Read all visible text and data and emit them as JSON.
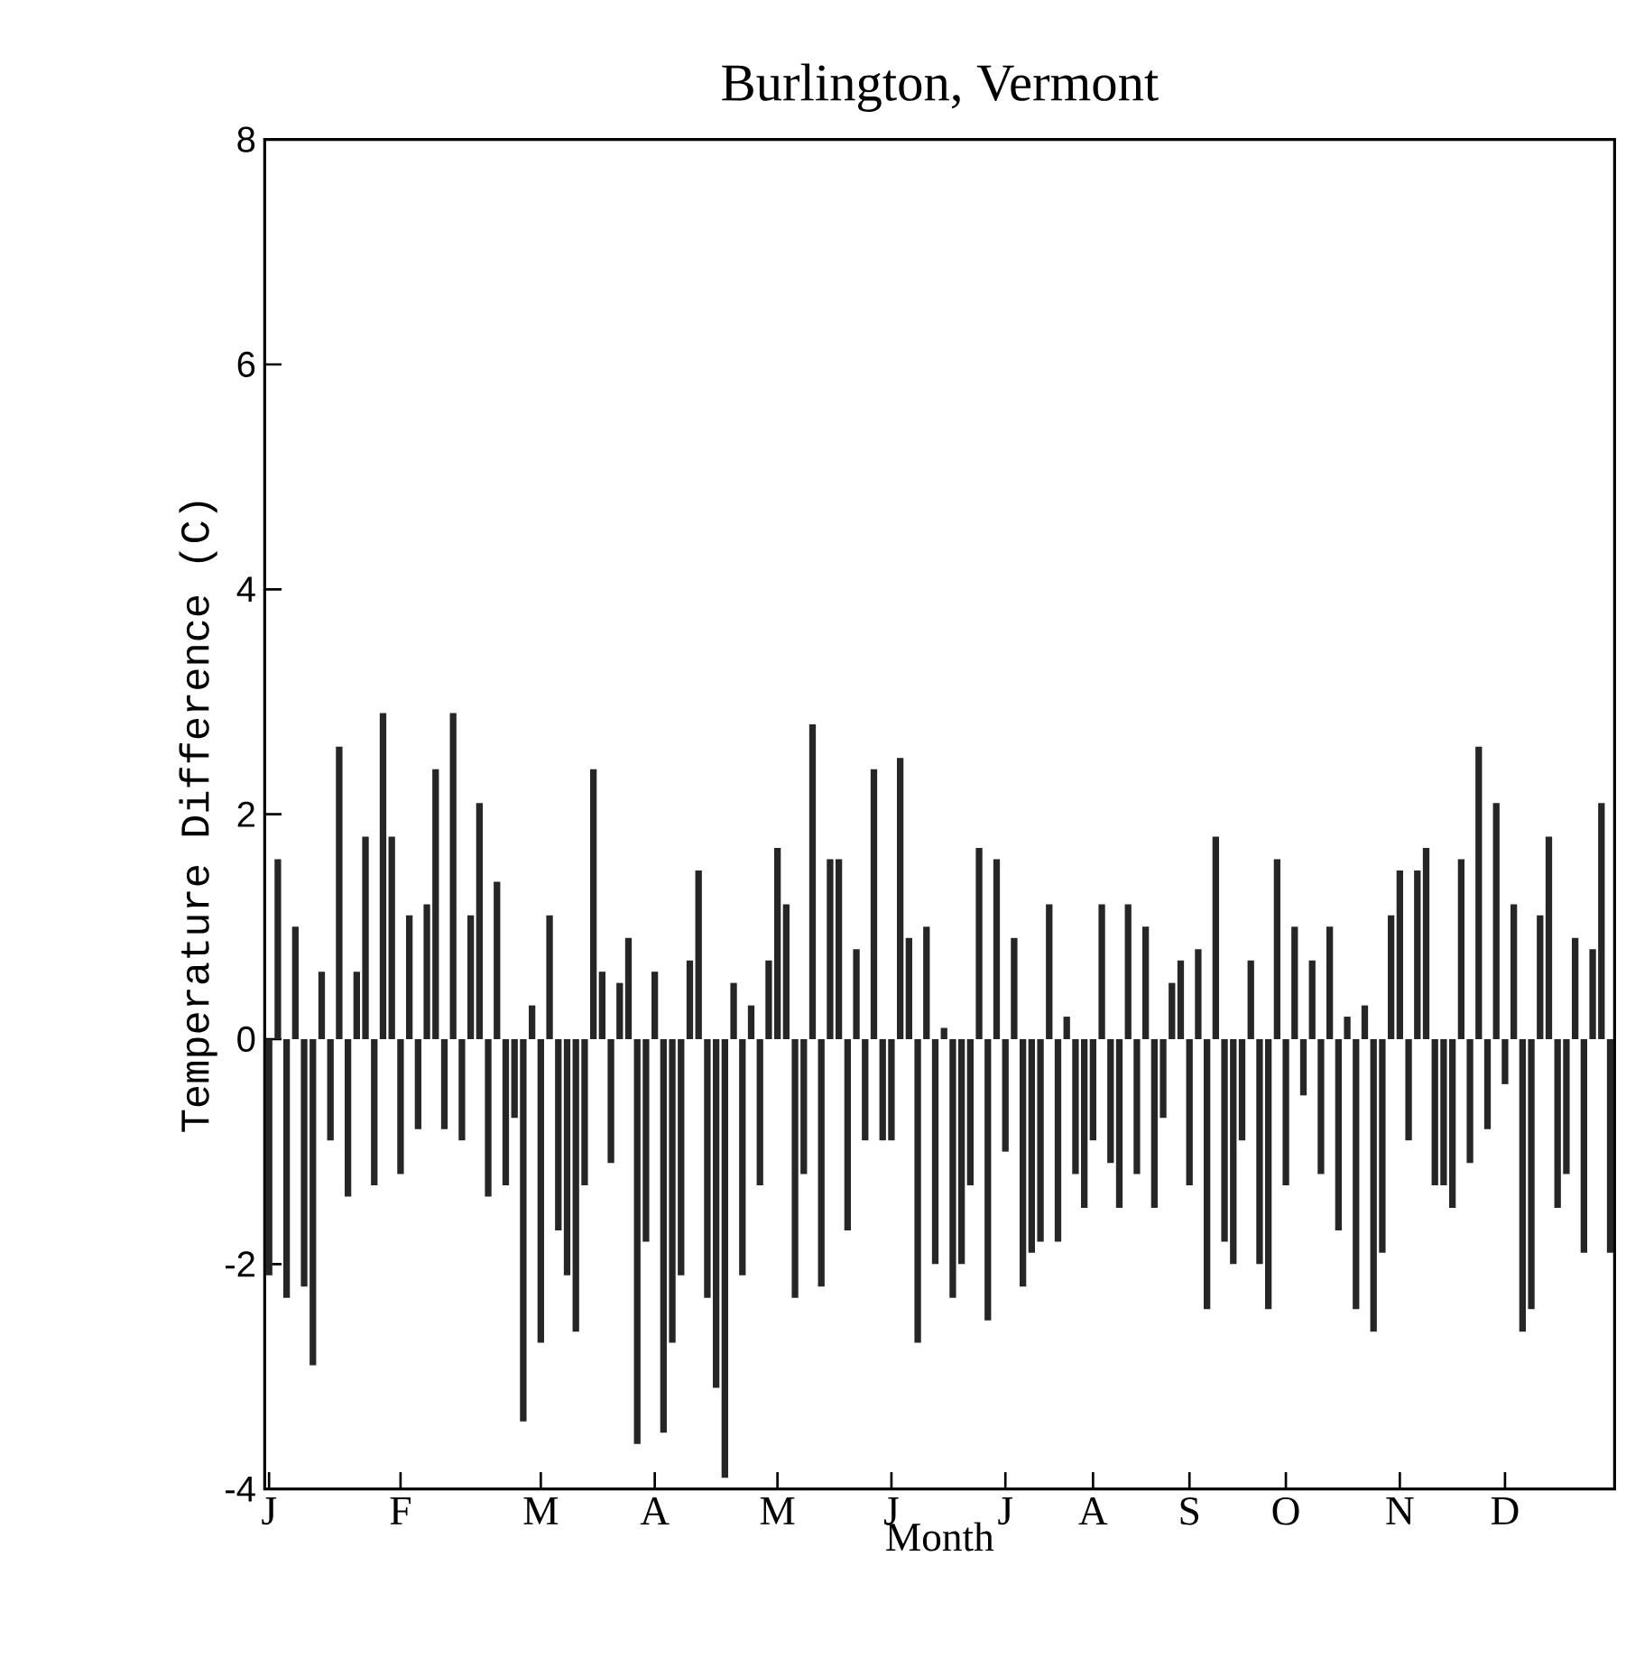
{
  "chart_data": {
    "type": "bar",
    "title": "Burlington, Vermont",
    "xlabel": "Month",
    "ylabel": "Temperature Difference (C)",
    "categories": [
      "J",
      null,
      null,
      null,
      null,
      null,
      null,
      null,
      null,
      null,
      null,
      null,
      null,
      null,
      null,
      "F",
      null,
      null,
      null,
      null,
      null,
      null,
      null,
      null,
      null,
      null,
      null,
      null,
      null,
      null,
      null,
      "M",
      null,
      null,
      null,
      null,
      null,
      null,
      null,
      null,
      null,
      null,
      null,
      null,
      "A",
      null,
      null,
      null,
      null,
      null,
      null,
      null,
      null,
      null,
      null,
      null,
      null,
      null,
      "M",
      null,
      null,
      null,
      null,
      null,
      null,
      null,
      null,
      null,
      null,
      null,
      null,
      "J",
      null,
      null,
      null,
      null,
      null,
      null,
      null,
      null,
      null,
      null,
      null,
      null,
      "J",
      null,
      null,
      null,
      null,
      null,
      null,
      null,
      null,
      null,
      "A",
      null,
      null,
      null,
      null,
      null,
      null,
      null,
      null,
      null,
      null,
      "S",
      null,
      null,
      null,
      null,
      null,
      null,
      null,
      null,
      null,
      null,
      "O",
      null,
      null,
      null,
      null,
      null,
      null,
      null,
      null,
      null,
      null,
      null,
      null,
      "N",
      null,
      null,
      null,
      null,
      null,
      null,
      null,
      null,
      null,
      null,
      null,
      "D",
      null,
      null,
      null,
      null,
      null,
      null,
      null,
      null,
      null,
      null,
      null,
      null
    ],
    "values": [
      -2.1,
      1.6,
      -2.3,
      1.0,
      -2.2,
      -2.9,
      0.6,
      -0.9,
      2.6,
      -1.4,
      0.6,
      1.8,
      -1.3,
      2.9,
      1.8,
      -1.2,
      1.1,
      -0.8,
      1.2,
      2.4,
      -0.8,
      2.9,
      -0.9,
      1.1,
      2.1,
      -1.4,
      1.4,
      -1.3,
      -0.7,
      -3.4,
      0.3,
      -2.7,
      1.1,
      -1.7,
      -2.1,
      -2.6,
      -1.3,
      2.4,
      0.6,
      -1.1,
      0.5,
      0.9,
      -3.6,
      -1.8,
      0.6,
      -3.5,
      -2.7,
      -2.1,
      0.7,
      1.5,
      -2.3,
      -3.1,
      -3.9,
      0.5,
      -2.1,
      0.3,
      -1.3,
      0.7,
      1.7,
      1.2,
      -2.3,
      -1.2,
      2.8,
      -2.2,
      1.6,
      1.6,
      -1.7,
      0.8,
      -0.9,
      2.4,
      -0.9,
      -0.9,
      2.5,
      0.9,
      -2.7,
      1.0,
      -2.0,
      0.1,
      -2.3,
      -2.0,
      -1.3,
      1.7,
      -2.5,
      1.6,
      -1.0,
      0.9,
      -2.2,
      -1.9,
      -1.8,
      1.2,
      -1.8,
      0.2,
      -1.2,
      -1.5,
      -0.9,
      1.2,
      -1.1,
      -1.5,
      1.2,
      -1.2,
      1.0,
      -1.5,
      -0.7,
      0.5,
      0.7,
      -1.3,
      0.8,
      -2.4,
      1.8,
      -1.8,
      -2.0,
      -0.9,
      0.7,
      -2.0,
      -2.4,
      1.6,
      -1.3,
      1.0,
      -0.5,
      0.7,
      -1.2,
      1.0,
      -1.7,
      0.2,
      -2.4,
      0.3,
      -2.6,
      -1.9,
      1.1,
      1.5,
      -0.9,
      1.5,
      1.7,
      -1.3,
      -1.3,
      -1.5,
      1.6,
      -1.1,
      2.6,
      -0.8,
      2.1,
      -0.4,
      1.2,
      -2.6,
      -2.4,
      1.1,
      1.8,
      -1.5,
      -1.2,
      0.9,
      -1.9,
      0.8,
      2.1,
      -1.9
    ],
    "color": "#262626",
    "ylim": [
      -4,
      8
    ],
    "yticks": [
      -4,
      -2,
      0,
      2,
      4,
      6,
      8
    ],
    "grid": false
  }
}
